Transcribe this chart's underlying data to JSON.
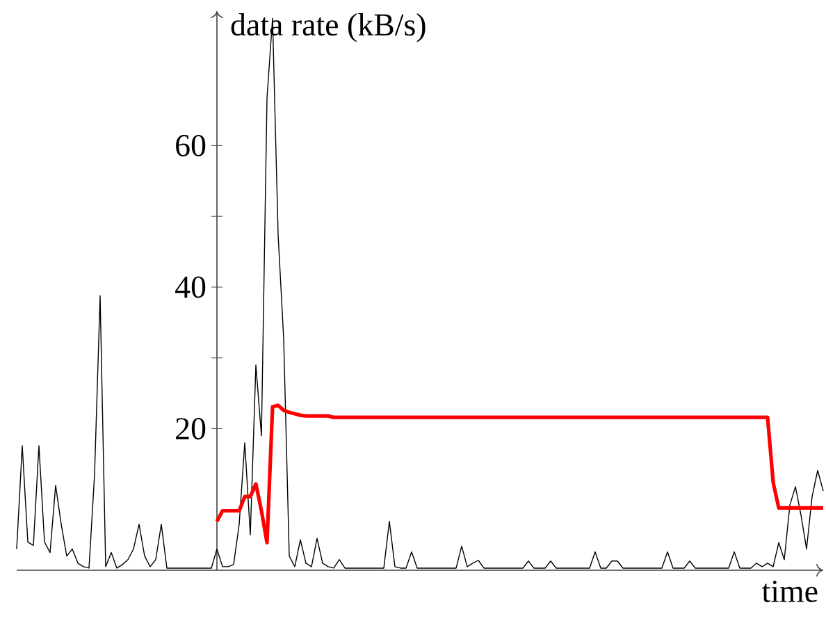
{
  "chart_data": {
    "type": "line",
    "xlabel": "time",
    "ylabel": "data rate (kB/s)",
    "categories": [
      null,
      null,
      null,
      null,
      null,
      null,
      null,
      null,
      null,
      null,
      null,
      null,
      null,
      null,
      null,
      null,
      null,
      null,
      null,
      null,
      null,
      null,
      null,
      null,
      null,
      null,
      null,
      null,
      null,
      null,
      null,
      null,
      null,
      null,
      null,
      null,
      null,
      null,
      null,
      null,
      null,
      null,
      null,
      null,
      null,
      null,
      null,
      null,
      null,
      null,
      null,
      null,
      null,
      null,
      null,
      null,
      null,
      null,
      null,
      null,
      null,
      null,
      null,
      null,
      null,
      null,
      null,
      null,
      null,
      null,
      null,
      null,
      null,
      null,
      null,
      null,
      null,
      null,
      null,
      null,
      null,
      null,
      null,
      null,
      null,
      null,
      null,
      null,
      null,
      null,
      null,
      null,
      null,
      null,
      null,
      null,
      null,
      null,
      null,
      null,
      null,
      null,
      null,
      null,
      null,
      null,
      null,
      null,
      null,
      null,
      null,
      null,
      null,
      null,
      null,
      null,
      null,
      null,
      null,
      null,
      null,
      null,
      null,
      null,
      null,
      null,
      null,
      null,
      null,
      null,
      null,
      null,
      null,
      null,
      null,
      null,
      null,
      null,
      null,
      null,
      null,
      null,
      null,
      null,
      null,
      null
    ],
    "series": [
      {
        "color": "#000000",
        "values": [
          3,
          17.6,
          4,
          3.5,
          17.6,
          4,
          2.5,
          12,
          6.5,
          2,
          3,
          1,
          0.5,
          0.3,
          13.5,
          38.8,
          0.5,
          2.5,
          0.3,
          0.8,
          1.5,
          3,
          6.5,
          2,
          0.5,
          1.5,
          6.5,
          0.3,
          0.3,
          0.3,
          0.3,
          0.3,
          0.3,
          0.3,
          0.3,
          0.3,
          3,
          0.5,
          0.5,
          0.8,
          6.5,
          18,
          5,
          29,
          19,
          66.7,
          78,
          47.4,
          32.7,
          2,
          0.5,
          4.3,
          1,
          0.5,
          4.5,
          1,
          0.5,
          0.3,
          1.5,
          0.3,
          0.3,
          0.3,
          0.3,
          0.3,
          0.3,
          0.3,
          0.3,
          6.9,
          0.5,
          0.3,
          0.3,
          2.6,
          0.3,
          0.3,
          0.3,
          0.3,
          0.3,
          0.3,
          0.3,
          0.3,
          3.4,
          0.5,
          1,
          1.4,
          0.3,
          0.3,
          0.3,
          0.3,
          0.3,
          0.3,
          0.3,
          0.3,
          1.3,
          0.3,
          0.3,
          0.3,
          1.3,
          0.3,
          0.3,
          0.3,
          0.3,
          0.3,
          0.3,
          0.3,
          2.6,
          0.3,
          0.3,
          1.3,
          1.3,
          0.3,
          0.3,
          0.3,
          0.3,
          0.3,
          0.3,
          0.3,
          0.3,
          2.6,
          0.3,
          0.3,
          0.3,
          1.3,
          0.3,
          0.3,
          0.3,
          0.3,
          0.3,
          0.3,
          0.3,
          2.6,
          0.3,
          0.3,
          0.3,
          1,
          0.5,
          1,
          0.5,
          3.9,
          1.5,
          9.2,
          11.8,
          7.8,
          3,
          10.4,
          14.1,
          11.2
        ]
      },
      {
        "color": "#ff0000",
        "values": [
          null,
          null,
          null,
          null,
          null,
          null,
          null,
          null,
          null,
          null,
          null,
          null,
          null,
          null,
          null,
          null,
          null,
          null,
          null,
          null,
          null,
          null,
          null,
          null,
          null,
          null,
          null,
          null,
          null,
          null,
          null,
          null,
          null,
          null,
          null,
          null,
          6.9,
          8.4,
          8.4,
          8.4,
          8.4,
          10.4,
          10.4,
          12.2,
          8.4,
          3.9,
          23.1,
          23.3,
          22.6,
          22.3,
          22.1,
          21.9,
          21.8,
          21.8,
          21.8,
          21.8,
          21.8,
          21.6,
          21.6,
          21.6,
          21.6,
          21.6,
          21.6,
          21.6,
          21.6,
          21.6,
          21.6,
          21.6,
          21.6,
          21.6,
          21.6,
          21.6,
          21.6,
          21.6,
          21.6,
          21.6,
          21.6,
          21.6,
          21.6,
          21.6,
          21.6,
          21.6,
          21.6,
          21.6,
          21.6,
          21.6,
          21.6,
          21.6,
          21.6,
          21.6,
          21.6,
          21.6,
          21.6,
          21.6,
          21.6,
          21.6,
          21.6,
          21.6,
          21.6,
          21.6,
          21.6,
          21.6,
          21.6,
          21.6,
          21.6,
          21.6,
          21.6,
          21.6,
          21.6,
          21.6,
          21.6,
          21.6,
          21.6,
          21.6,
          21.6,
          21.6,
          21.6,
          21.6,
          21.6,
          21.6,
          21.6,
          21.6,
          21.6,
          21.6,
          21.6,
          21.6,
          21.6,
          21.6,
          21.6,
          21.6,
          21.6,
          21.6,
          21.6,
          21.6,
          21.6,
          21.6,
          12.4,
          8.8,
          8.8,
          8.8,
          8.8,
          8.8,
          8.8,
          8.8,
          8.8,
          8.8
        ]
      }
    ],
    "ylim": [
      0,
      79
    ],
    "yticks": [
      20,
      40,
      60
    ],
    "grid": false,
    "marker": "none",
    "line_style": "solid"
  }
}
